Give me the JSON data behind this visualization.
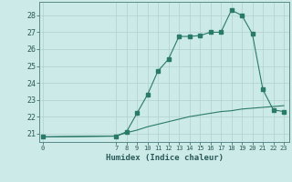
{
  "x_all": [
    0,
    7,
    8,
    9,
    10,
    11,
    12,
    13,
    14,
    15,
    16,
    17,
    18,
    19,
    20,
    21,
    22,
    23
  ],
  "line1_y": [
    20.8,
    20.85,
    21.1,
    22.2,
    23.3,
    24.7,
    25.4,
    26.75,
    26.75,
    26.8,
    27.0,
    27.0,
    28.3,
    28.0,
    26.9,
    23.6,
    22.4,
    22.3
  ],
  "line2_y": [
    20.8,
    20.85,
    21.05,
    21.2,
    21.4,
    21.55,
    21.7,
    21.85,
    22.0,
    22.1,
    22.2,
    22.3,
    22.35,
    22.45,
    22.5,
    22.55,
    22.6,
    22.65
  ],
  "line_color": "#2a7a6a",
  "bg_color": "#cceae8",
  "grid_color": "#b0d0ce",
  "ylabel_ticks": [
    21,
    22,
    23,
    24,
    25,
    26,
    27,
    28
  ],
  "xticks": [
    0,
    7,
    8,
    9,
    10,
    11,
    12,
    13,
    14,
    15,
    16,
    17,
    18,
    19,
    20,
    21,
    22,
    23
  ],
  "xlabel": "Humidex (Indice chaleur)",
  "ylim": [
    20.5,
    28.8
  ],
  "xlim": [
    -0.3,
    23.5
  ],
  "markersize": 2.5
}
